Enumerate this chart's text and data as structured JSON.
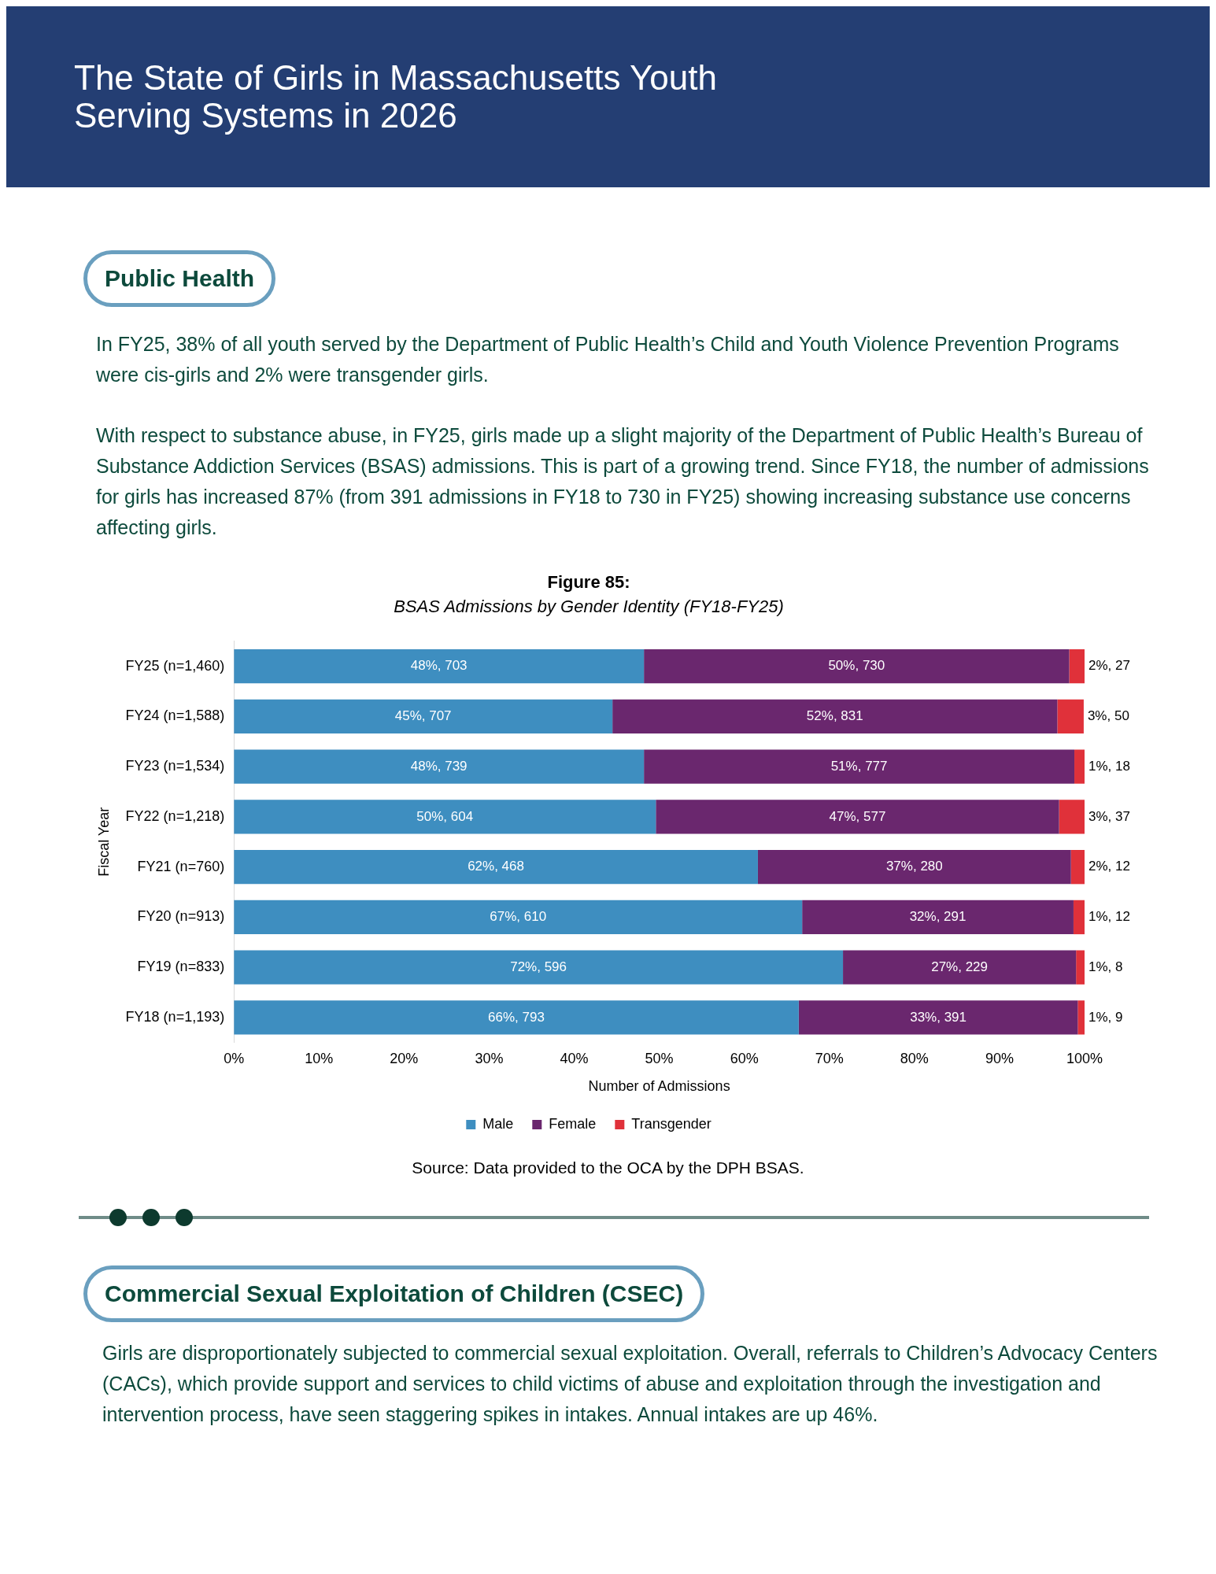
{
  "chart_data": {
    "type": "bar",
    "orientation": "horizontal",
    "stacked": true,
    "title": "Figure 85:",
    "subtitle": "BSAS Admissions by Gender Identity (FY18-FY25)",
    "xlabel": "Number of Admissions",
    "ylabel": "Fiscal Year",
    "categories": [
      "FY25 (n=1,460)",
      "FY24 (n=1,588)",
      "FY23 (n=1,534)",
      "FY22 (n=1,218)",
      "FY21 (n=760)",
      "FY20 (n=913)",
      "FY19 (n=833)",
      "FY18 (n=1,193)"
    ],
    "series": [
      {
        "name": "Male",
        "color": "#3e8ec0",
        "values": [
          48.2,
          44.5,
          48.2,
          49.6,
          61.6,
          66.8,
          71.6,
          66.4
        ],
        "value_labels": [
          "48%, 703",
          "45%, 707",
          "48%, 739",
          "50%, 604",
          "62%, 468",
          "67%, 610",
          "72%, 596",
          "66%, 793"
        ]
      },
      {
        "name": "Female",
        "color": "#6a276e",
        "values": [
          50.0,
          52.3,
          50.6,
          47.4,
          36.8,
          31.9,
          27.4,
          32.8
        ],
        "value_labels": [
          "50%, 730",
          "52%, 831",
          "51%, 777",
          "47%, 577",
          "37%, 280",
          "32%, 291",
          "27%, 229",
          "33%, 391"
        ]
      },
      {
        "name": "Transgender",
        "color": "#e0313a",
        "values": [
          1.8,
          3.1,
          1.2,
          3.0,
          1.6,
          1.3,
          1.0,
          0.8
        ],
        "value_labels": [
          "2%, 27",
          "3%, 50",
          "1%, 18",
          "3%, 37",
          "2%, 12",
          "1%, 12",
          "1%, 8",
          "1%, 9"
        ]
      }
    ],
    "xlim": [
      0,
      100
    ],
    "xticks": [
      {
        "value": 0,
        "label": "0%"
      },
      {
        "value": 10,
        "label": "10%"
      },
      {
        "value": 20,
        "label": "20%"
      },
      {
        "value": 30,
        "label": "30%"
      },
      {
        "value": 40,
        "label": "40%"
      },
      {
        "value": 50,
        "label": "50%"
      },
      {
        "value": 60,
        "label": "60%"
      },
      {
        "value": 70,
        "label": "70%"
      },
      {
        "value": 80,
        "label": "80%"
      },
      {
        "value": 90,
        "label": "90%"
      },
      {
        "value": 100,
        "label": "100%"
      }
    ],
    "legend": "bottom",
    "grid": false,
    "annotations": [
      "The State of Girls in Massachusetts Youth Serving Systems in 2026",
      "Public Health",
      "In FY25, 38% of all youth served by the Department of Public Health’s Child and Youth Violence Prevention Programs were cis-girls and 2% were transgender girls.",
      "With respect to substance abuse, in FY25, girls made up a slight majority of the Department of Public Health’s Bureau of Substance Addiction Services (BSAS) admissions. This is part of a growing trend. Since FY18, the number of admissions for girls has increased 87% (from 391 admissions in FY18 to 730 in FY25) showing increasing substance use concerns affecting girls.",
      "Source: Data provided to the OCA by the DPH BSAS.",
      "Commercial Sexual Exploitation of Children (CSEC)",
      "Girls are disproportionately subjected to commercial sexual exploitation. Overall, referrals to Children’s Advocacy Centers (CACs), which provide support and services to child victims of abuse and exploitation through the investigation and intervention process, have seen staggering spikes in intakes. Annual intakes are up 46%."
    ]
  }
}
